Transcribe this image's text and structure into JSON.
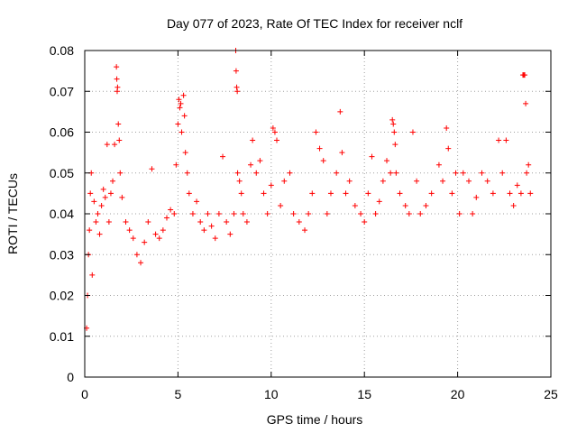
{
  "chart_data": {
    "type": "scatter",
    "title": "Day 077 of 2023, Rate Of TEC Index for receiver nclf",
    "xlabel": "GPS time / hours",
    "ylabel": "ROTI / TECUs",
    "xlim": [
      0,
      25
    ],
    "ylim": [
      0,
      0.08
    ],
    "x_ticks": [
      0,
      5,
      10,
      15,
      20,
      25
    ],
    "x_tick_labels": [
      "0",
      "5",
      "10",
      "15",
      "20",
      "25"
    ],
    "y_ticks": [
      0,
      0.01,
      0.02,
      0.03,
      0.04,
      0.05,
      0.06,
      0.07,
      0.08
    ],
    "y_tick_labels": [
      "0",
      "0.01",
      "0.02",
      "0.03",
      "0.04",
      "0.05",
      "0.06",
      "0.07",
      "0.08"
    ],
    "grid": true,
    "marker": "plus",
    "series": [
      {
        "name": "ROTI",
        "color": "#ff0000",
        "points": [
          [
            0.1,
            0.012
          ],
          [
            0.15,
            0.02
          ],
          [
            0.2,
            0.03
          ],
          [
            0.25,
            0.036
          ],
          [
            0.3,
            0.045
          ],
          [
            0.35,
            0.05
          ],
          [
            0.4,
            0.025
          ],
          [
            0.5,
            0.043
          ],
          [
            0.6,
            0.038
          ],
          [
            0.7,
            0.04
          ],
          [
            0.8,
            0.035
          ],
          [
            0.9,
            0.042
          ],
          [
            1.0,
            0.046
          ],
          [
            1.1,
            0.044
          ],
          [
            1.2,
            0.057
          ],
          [
            1.3,
            0.038
          ],
          [
            1.4,
            0.045
          ],
          [
            1.5,
            0.048
          ],
          [
            1.6,
            0.057
          ],
          [
            1.7,
            0.076
          ],
          [
            1.72,
            0.073
          ],
          [
            1.74,
            0.07
          ],
          [
            1.76,
            0.071
          ],
          [
            1.8,
            0.062
          ],
          [
            1.85,
            0.058
          ],
          [
            1.9,
            0.05
          ],
          [
            2.0,
            0.044
          ],
          [
            2.2,
            0.038
          ],
          [
            2.4,
            0.036
          ],
          [
            2.6,
            0.034
          ],
          [
            2.8,
            0.03
          ],
          [
            3.0,
            0.028
          ],
          [
            3.2,
            0.033
          ],
          [
            3.4,
            0.038
          ],
          [
            3.6,
            0.051
          ],
          [
            3.8,
            0.035
          ],
          [
            4.0,
            0.034
          ],
          [
            4.2,
            0.036
          ],
          [
            4.4,
            0.039
          ],
          [
            4.6,
            0.041
          ],
          [
            4.8,
            0.04
          ],
          [
            4.9,
            0.052
          ],
          [
            5.0,
            0.062
          ],
          [
            5.05,
            0.068
          ],
          [
            5.1,
            0.066
          ],
          [
            5.15,
            0.067
          ],
          [
            5.2,
            0.06
          ],
          [
            5.3,
            0.069
          ],
          [
            5.35,
            0.064
          ],
          [
            5.4,
            0.055
          ],
          [
            5.5,
            0.05
          ],
          [
            5.6,
            0.045
          ],
          [
            5.8,
            0.04
          ],
          [
            6.0,
            0.043
          ],
          [
            6.2,
            0.038
          ],
          [
            6.4,
            0.036
          ],
          [
            6.6,
            0.04
          ],
          [
            6.8,
            0.037
          ],
          [
            7.0,
            0.034
          ],
          [
            7.2,
            0.04
          ],
          [
            7.4,
            0.054
          ],
          [
            7.6,
            0.038
          ],
          [
            7.8,
            0.035
          ],
          [
            8.0,
            0.04
          ],
          [
            8.1,
            0.08
          ],
          [
            8.12,
            0.075
          ],
          [
            8.15,
            0.071
          ],
          [
            8.18,
            0.07
          ],
          [
            8.2,
            0.05
          ],
          [
            8.3,
            0.048
          ],
          [
            8.4,
            0.045
          ],
          [
            8.5,
            0.04
          ],
          [
            8.7,
            0.038
          ],
          [
            8.9,
            0.052
          ],
          [
            9.0,
            0.058
          ],
          [
            9.2,
            0.05
          ],
          [
            9.4,
            0.053
          ],
          [
            9.6,
            0.045
          ],
          [
            9.8,
            0.04
          ],
          [
            10.0,
            0.047
          ],
          [
            10.1,
            0.061
          ],
          [
            10.2,
            0.06
          ],
          [
            10.3,
            0.058
          ],
          [
            10.5,
            0.042
          ],
          [
            10.7,
            0.048
          ],
          [
            11.0,
            0.05
          ],
          [
            11.2,
            0.04
          ],
          [
            11.5,
            0.038
          ],
          [
            11.8,
            0.036
          ],
          [
            12.0,
            0.04
          ],
          [
            12.2,
            0.045
          ],
          [
            12.4,
            0.06
          ],
          [
            12.6,
            0.056
          ],
          [
            12.8,
            0.053
          ],
          [
            13.0,
            0.04
          ],
          [
            13.2,
            0.045
          ],
          [
            13.5,
            0.05
          ],
          [
            13.7,
            0.065
          ],
          [
            13.8,
            0.055
          ],
          [
            14.0,
            0.045
          ],
          [
            14.2,
            0.048
          ],
          [
            14.5,
            0.042
          ],
          [
            14.8,
            0.04
          ],
          [
            15.0,
            0.038
          ],
          [
            15.2,
            0.045
          ],
          [
            15.4,
            0.054
          ],
          [
            15.6,
            0.04
          ],
          [
            15.8,
            0.043
          ],
          [
            16.0,
            0.048
          ],
          [
            16.2,
            0.053
          ],
          [
            16.4,
            0.05
          ],
          [
            16.5,
            0.063
          ],
          [
            16.55,
            0.062
          ],
          [
            16.6,
            0.06
          ],
          [
            16.65,
            0.057
          ],
          [
            16.7,
            0.05
          ],
          [
            16.9,
            0.045
          ],
          [
            17.2,
            0.042
          ],
          [
            17.4,
            0.04
          ],
          [
            17.6,
            0.06
          ],
          [
            17.8,
            0.048
          ],
          [
            18.0,
            0.04
          ],
          [
            18.3,
            0.042
          ],
          [
            18.6,
            0.045
          ],
          [
            19.0,
            0.052
          ],
          [
            19.2,
            0.048
          ],
          [
            19.4,
            0.061
          ],
          [
            19.5,
            0.056
          ],
          [
            19.7,
            0.045
          ],
          [
            19.9,
            0.05
          ],
          [
            20.1,
            0.04
          ],
          [
            20.3,
            0.05
          ],
          [
            20.6,
            0.048
          ],
          [
            20.8,
            0.04
          ],
          [
            21.0,
            0.044
          ],
          [
            21.3,
            0.05
          ],
          [
            21.6,
            0.048
          ],
          [
            21.9,
            0.045
          ],
          [
            22.2,
            0.058
          ],
          [
            22.4,
            0.05
          ],
          [
            22.6,
            0.058
          ],
          [
            22.8,
            0.045
          ],
          [
            23.0,
            0.042
          ],
          [
            23.2,
            0.047
          ],
          [
            23.4,
            0.045
          ],
          [
            23.5,
            0.074
          ],
          [
            23.55,
            0.074
          ],
          [
            23.6,
            0.074
          ],
          [
            23.65,
            0.067
          ],
          [
            23.7,
            0.05
          ],
          [
            23.8,
            0.052
          ],
          [
            23.9,
            0.045
          ]
        ]
      }
    ]
  }
}
